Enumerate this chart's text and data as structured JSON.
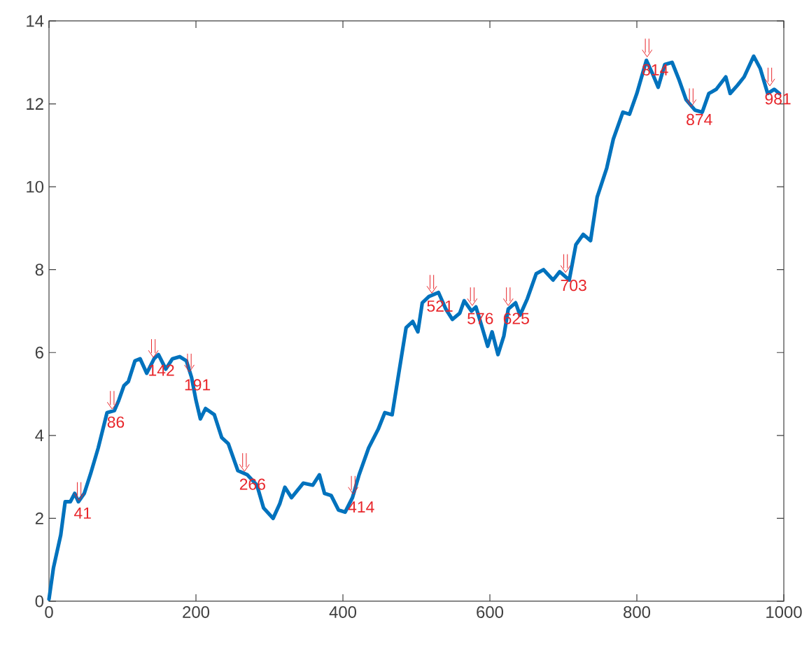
{
  "chart_data": {
    "type": "line",
    "color": "#0072bd",
    "line_style": "solid",
    "xlim": [
      0,
      1000
    ],
    "ylim": [
      0,
      14
    ],
    "xticks": [
      0,
      200,
      400,
      600,
      800,
      1000
    ],
    "yticks": [
      0,
      2,
      4,
      6,
      8,
      10,
      12,
      14
    ],
    "x": [
      0,
      6,
      16,
      22,
      29,
      35,
      40,
      48,
      57,
      67,
      79,
      89,
      95,
      102,
      108,
      117,
      124,
      133,
      143,
      149,
      159,
      168,
      178,
      187,
      194,
      200,
      206,
      213,
      225,
      235,
      244,
      257,
      270,
      283,
      292,
      305,
      314,
      321,
      330,
      346,
      359,
      368,
      375,
      384,
      394,
      403,
      413,
      422,
      435,
      448,
      457,
      467,
      476,
      486,
      495,
      502,
      508,
      517,
      530,
      540,
      549,
      559,
      565,
      575,
      581,
      587,
      597,
      603,
      611,
      619,
      625,
      635,
      641,
      651,
      663,
      673,
      686,
      695,
      708,
      717,
      727,
      737,
      746,
      759,
      768,
      781,
      790,
      800,
      813,
      822,
      829,
      838,
      848,
      857,
      867,
      879,
      889,
      898,
      908,
      921,
      927,
      937,
      946,
      959,
      968,
      978,
      987,
      994
    ],
    "values": [
      0.05,
      0.8,
      1.6,
      2.4,
      2.4,
      2.6,
      2.4,
      2.6,
      3.1,
      3.7,
      4.55,
      4.6,
      4.85,
      5.2,
      5.3,
      5.8,
      5.85,
      5.5,
      5.85,
      5.95,
      5.6,
      5.85,
      5.9,
      5.8,
      5.4,
      4.85,
      4.4,
      4.65,
      4.5,
      3.95,
      3.8,
      3.15,
      3.05,
      2.8,
      2.25,
      2.0,
      2.35,
      2.75,
      2.5,
      2.85,
      2.8,
      3.05,
      2.6,
      2.55,
      2.2,
      2.15,
      2.5,
      3.05,
      3.7,
      4.15,
      4.55,
      4.5,
      5.5,
      6.6,
      6.75,
      6.5,
      7.2,
      7.35,
      7.45,
      7.05,
      6.8,
      6.95,
      7.25,
      7.0,
      7.1,
      6.75,
      6.15,
      6.5,
      5.95,
      6.4,
      7.05,
      7.2,
      6.9,
      7.3,
      7.9,
      8.0,
      7.75,
      7.95,
      7.75,
      8.6,
      8.85,
      8.7,
      9.75,
      10.45,
      11.15,
      11.8,
      11.75,
      12.25,
      13.05,
      12.7,
      12.4,
      12.95,
      13.0,
      12.6,
      12.1,
      11.85,
      11.8,
      12.25,
      12.35,
      12.65,
      12.25,
      12.45,
      12.65,
      13.15,
      12.85,
      12.25,
      12.35,
      12.25
    ],
    "annotations": [
      {
        "text": "41",
        "x": 41,
        "y": 2.4
      },
      {
        "text": "86",
        "x": 86,
        "y": 4.6
      },
      {
        "text": "142",
        "x": 142,
        "y": 5.85
      },
      {
        "text": "191",
        "x": 191,
        "y": 5.5
      },
      {
        "text": "266",
        "x": 266,
        "y": 3.1
      },
      {
        "text": "414",
        "x": 414,
        "y": 2.55
      },
      {
        "text": "521",
        "x": 521,
        "y": 7.4
      },
      {
        "text": "576",
        "x": 576,
        "y": 7.1
      },
      {
        "text": "625",
        "x": 625,
        "y": 7.1
      },
      {
        "text": "703",
        "x": 703,
        "y": 7.9
      },
      {
        "text": "814",
        "x": 814,
        "y": 13.1
      },
      {
        "text": "874",
        "x": 874,
        "y": 11.9
      },
      {
        "text": "981",
        "x": 981,
        "y": 12.4
      }
    ]
  }
}
